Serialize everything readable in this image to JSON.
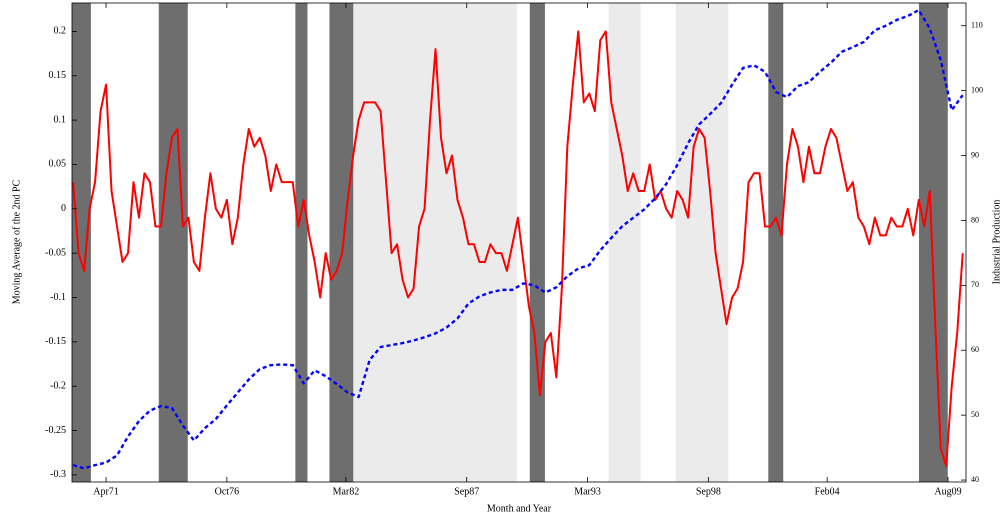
{
  "chart_data": {
    "type": "line",
    "x_label": "Month and Year",
    "y_label": "Moving Average of the 2nd PC",
    "y2_label": "Industrial Production",
    "xlim": [
      1969.7,
      2010.4
    ],
    "ylim": [
      -0.308,
      0.232
    ],
    "y2lim": [
      39.7,
      113.5
    ],
    "xticks": [
      {
        "value": 1971.25,
        "label": "Apr71"
      },
      {
        "value": 1976.75,
        "label": "Oct76"
      },
      {
        "value": 1982.17,
        "label": "Mar82"
      },
      {
        "value": 1987.67,
        "label": "Sep87"
      },
      {
        "value": 1993.17,
        "label": "Mar93"
      },
      {
        "value": 1998.67,
        "label": "Sep98"
      },
      {
        "value": 2004.08,
        "label": "Feb04"
      },
      {
        "value": 2009.58,
        "label": "Aug09"
      }
    ],
    "yticks": [
      -0.3,
      -0.25,
      -0.2,
      -0.15,
      -0.1,
      -0.05,
      0,
      0.05,
      0.1,
      0.15,
      0.2
    ],
    "y2ticks": [
      40,
      50,
      60,
      70,
      80,
      90,
      100,
      110
    ],
    "bands": [
      {
        "start": 1969.7,
        "end": 1970.56,
        "color": "#6e6e6e"
      },
      {
        "start": 1973.65,
        "end": 1974.97,
        "color": "#6e6e6e"
      },
      {
        "start": 1979.87,
        "end": 1980.42,
        "color": "#6e6e6e"
      },
      {
        "start": 1981.42,
        "end": 1982.51,
        "color": "#6e6e6e"
      },
      {
        "start": 1982.51,
        "end": 1989.95,
        "color": "#ebebeb"
      },
      {
        "start": 1990.54,
        "end": 1991.23,
        "color": "#6e6e6e"
      },
      {
        "start": 1994.13,
        "end": 1995.59,
        "color": "#ebebeb"
      },
      {
        "start": 1997.18,
        "end": 1999.58,
        "color": "#ebebeb"
      },
      {
        "start": 2001.4,
        "end": 2002.08,
        "color": "#6e6e6e"
      },
      {
        "start": 2008.26,
        "end": 2009.57,
        "color": "#6e6e6e"
      }
    ],
    "series": [
      {
        "color": "#ff0000",
        "style": "solid",
        "x": [
          1969.75,
          1970,
          1970.25,
          1970.5,
          1970.75,
          1971,
          1971.25,
          1971.5,
          1971.75,
          1972,
          1972.25,
          1972.5,
          1972.75,
          1973,
          1973.25,
          1973.5,
          1973.75,
          1974,
          1974.25,
          1974.5,
          1974.75,
          1975,
          1975.25,
          1975.5,
          1975.75,
          1976,
          1976.25,
          1976.5,
          1976.75,
          1977,
          1977.25,
          1977.5,
          1977.75,
          1978,
          1978.25,
          1978.5,
          1978.75,
          1979,
          1979.25,
          1979.5,
          1979.75,
          1980,
          1980.25,
          1980.5,
          1980.75,
          1981,
          1981.25,
          1981.5,
          1981.75,
          1982,
          1982.25,
          1982.5,
          1982.75,
          1983,
          1983.25,
          1983.5,
          1983.75,
          1984,
          1984.25,
          1984.5,
          1984.75,
          1985,
          1985.25,
          1985.5,
          1985.75,
          1986,
          1986.25,
          1986.5,
          1986.75,
          1987,
          1987.25,
          1987.5,
          1987.75,
          1988,
          1988.25,
          1988.5,
          1988.75,
          1989,
          1989.25,
          1989.5,
          1989.75,
          1990,
          1990.25,
          1990.5,
          1990.75,
          1991,
          1991.25,
          1991.5,
          1991.75,
          1992,
          1992.25,
          1992.5,
          1992.75,
          1993,
          1993.25,
          1993.5,
          1993.75,
          1994,
          1994.25,
          1994.5,
          1994.75,
          1995,
          1995.25,
          1995.5,
          1995.75,
          1996,
          1996.25,
          1996.5,
          1996.75,
          1997,
          1997.25,
          1997.5,
          1997.75,
          1998,
          1998.25,
          1998.5,
          1998.75,
          1999,
          1999.25,
          1999.5,
          1999.75,
          2000,
          2000.25,
          2000.5,
          2000.75,
          2001,
          2001.25,
          2001.5,
          2001.75,
          2002,
          2002.25,
          2002.5,
          2002.75,
          2003,
          2003.25,
          2003.5,
          2003.75,
          2004,
          2004.25,
          2004.5,
          2004.75,
          2005,
          2005.25,
          2005.5,
          2005.75,
          2006,
          2006.25,
          2006.5,
          2006.75,
          2007,
          2007.25,
          2007.5,
          2007.75,
          2008,
          2008.25,
          2008.5,
          2008.75,
          2009,
          2009.25,
          2009.5,
          2009.75,
          2010,
          2010.25
        ],
        "values": [
          0.03,
          -0.05,
          -0.07,
          0.0,
          0.03,
          0.11,
          0.14,
          0.02,
          -0.02,
          -0.06,
          -0.05,
          0.03,
          -0.01,
          0.04,
          0.03,
          -0.02,
          -0.02,
          0.04,
          0.08,
          0.09,
          -0.02,
          -0.01,
          -0.06,
          -0.07,
          -0.01,
          0.04,
          0.0,
          -0.01,
          0.01,
          -0.04,
          -0.01,
          0.05,
          0.09,
          0.07,
          0.08,
          0.06,
          0.02,
          0.05,
          0.03,
          0.03,
          0.03,
          -0.02,
          0.01,
          -0.03,
          -0.06,
          -0.1,
          -0.05,
          -0.08,
          -0.07,
          -0.05,
          0.01,
          0.06,
          0.1,
          0.12,
          0.12,
          0.12,
          0.11,
          0.03,
          -0.05,
          -0.04,
          -0.08,
          -0.1,
          -0.09,
          -0.02,
          0.0,
          0.1,
          0.18,
          0.08,
          0.04,
          0.06,
          0.01,
          -0.01,
          -0.04,
          -0.04,
          -0.06,
          -0.06,
          -0.04,
          -0.05,
          -0.05,
          -0.07,
          -0.04,
          -0.01,
          -0.06,
          -0.11,
          -0.14,
          -0.21,
          -0.15,
          -0.14,
          -0.19,
          -0.09,
          0.07,
          0.14,
          0.2,
          0.12,
          0.13,
          0.11,
          0.19,
          0.2,
          0.12,
          0.09,
          0.06,
          0.02,
          0.04,
          0.02,
          0.02,
          0.05,
          0.01,
          0.02,
          0.0,
          -0.01,
          0.02,
          0.01,
          -0.01,
          0.07,
          0.09,
          0.08,
          0.02,
          -0.05,
          -0.09,
          -0.13,
          -0.1,
          -0.09,
          -0.06,
          0.03,
          0.04,
          0.04,
          -0.02,
          -0.02,
          -0.01,
          -0.03,
          0.05,
          0.09,
          0.07,
          0.03,
          0.07,
          0.04,
          0.04,
          0.07,
          0.09,
          0.08,
          0.05,
          0.02,
          0.03,
          -0.01,
          -0.02,
          -0.04,
          -0.01,
          -0.03,
          -0.03,
          -0.01,
          -0.02,
          -0.02,
          0.0,
          -0.03,
          0.01,
          -0.02,
          0.02,
          -0.13,
          -0.27,
          -0.29,
          -0.2,
          -0.14,
          -0.05
        ]
      },
      {
        "color": "#0000ff",
        "style": "dashed",
        "axis": "y2",
        "x": [
          1969.75,
          1970.25,
          1970.75,
          1971.25,
          1971.75,
          1972.25,
          1972.75,
          1973.25,
          1973.75,
          1974.25,
          1974.75,
          1975.25,
          1975.75,
          1976.25,
          1976.75,
          1977.25,
          1977.75,
          1978.25,
          1978.75,
          1979.25,
          1979.75,
          1980.25,
          1980.75,
          1981.25,
          1981.75,
          1982.25,
          1982.75,
          1983.25,
          1983.75,
          1984.25,
          1984.75,
          1985.25,
          1985.75,
          1986.25,
          1986.75,
          1987.25,
          1987.75,
          1988.25,
          1988.75,
          1989.25,
          1989.75,
          1990.25,
          1990.75,
          1991.25,
          1991.75,
          1992.25,
          1992.75,
          1993.25,
          1993.75,
          1994.25,
          1994.75,
          1995.25,
          1995.75,
          1996.25,
          1996.75,
          1997.25,
          1997.75,
          1998.25,
          1998.75,
          1999.25,
          1999.75,
          2000.25,
          2000.75,
          2001.25,
          2001.75,
          2002.25,
          2002.75,
          2003.25,
          2003.75,
          2004.25,
          2004.75,
          2005.25,
          2005.75,
          2006.25,
          2006.75,
          2007.25,
          2007.75,
          2008.25,
          2008.75,
          2009.25,
          2009.75,
          2010.25
        ],
        "values": [
          42.3,
          41.8,
          42.3,
          42.7,
          43.8,
          46.7,
          49.1,
          50.7,
          51.4,
          51.1,
          48.4,
          46.1,
          48.0,
          49.4,
          51.5,
          53.5,
          55.5,
          57.1,
          57.7,
          57.8,
          57.7,
          54.9,
          56.9,
          56.0,
          54.8,
          53.5,
          52.8,
          58.5,
          60.5,
          60.8,
          61.1,
          61.5,
          62.0,
          62.6,
          63.5,
          64.9,
          67.2,
          68.3,
          68.9,
          69.3,
          69.3,
          70.3,
          70.0,
          68.9,
          69.7,
          71.4,
          72.6,
          73.1,
          75.4,
          77.3,
          79.1,
          80.4,
          81.7,
          83.4,
          85.6,
          88.5,
          91.9,
          94.8,
          96.4,
          98.1,
          100.9,
          103.5,
          103.9,
          102.9,
          99.8,
          99.0,
          100.7,
          101.3,
          102.9,
          104.3,
          106.0,
          106.7,
          107.5,
          109.3,
          110.0,
          110.9,
          111.5,
          112.4,
          109.6,
          104.7,
          97.0,
          99.3
        ]
      }
    ]
  }
}
